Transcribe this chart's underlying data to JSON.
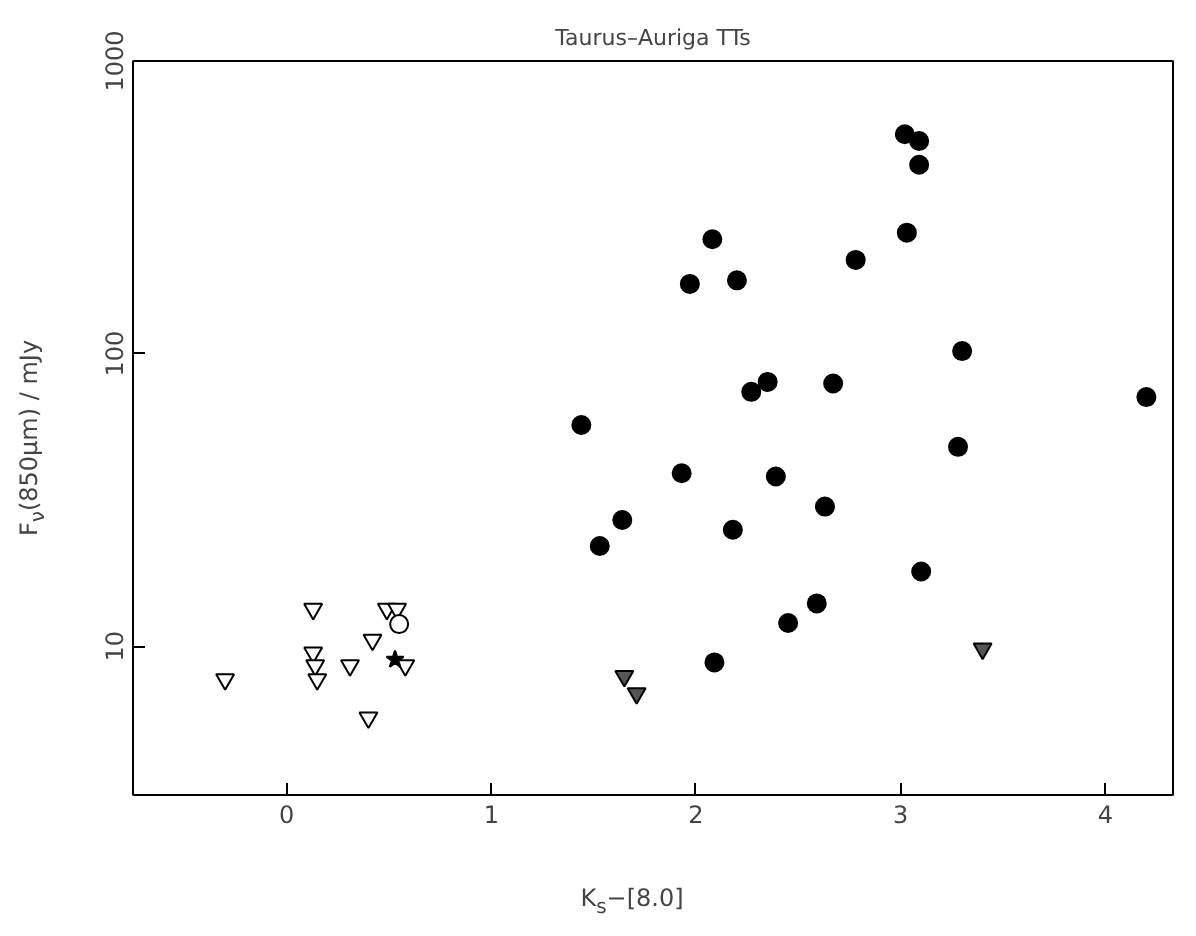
{
  "chart_data": {
    "type": "scatter",
    "title": "Taurus–Auriga TTs",
    "xlabel": "K$_{s}$−[8.0]",
    "ylabel": "F$_{ν}$(850μm) / mJy",
    "log": "y",
    "xlim": [
      -0.75,
      4.33
    ],
    "ylim": [
      3.1,
      1000
    ],
    "xticks": [
      0,
      1,
      2,
      3,
      4
    ],
    "yticks": [
      10,
      100,
      1000
    ],
    "series": [
      {
        "color": "#000000",
        "marker": "circle",
        "x": [
          3.02,
          3.09,
          3.09,
          3.03,
          2.08,
          1.97,
          2.2,
          2.78,
          3.3,
          2.35,
          2.27,
          2.67,
          4.2,
          1.44,
          3.28,
          1.93,
          2.39,
          1.64,
          2.63,
          2.18,
          1.53,
          3.1,
          2.59,
          2.45,
          2.09
        ],
        "values": [
          562,
          533,
          442,
          259,
          246,
          173,
          178,
          209,
          102,
          80,
          74,
          79,
          71,
          57,
          48,
          39,
          38,
          27,
          30,
          25,
          22,
          18,
          14,
          12,
          8.8
        ]
      },
      {
        "color": "#555555",
        "marker": "triangle",
        "x": [
          1.65,
          1.71,
          3.4
        ],
        "values": [
          7.9,
          6.9,
          9.8
        ]
      },
      {
        "color": "#ffffff",
        "marker": "triangle",
        "x": [
          -0.3,
          0.13,
          0.13,
          0.14,
          0.15,
          0.31,
          0.42,
          0.4,
          0.49,
          0.54,
          0.58
        ],
        "values": [
          7.7,
          13.4,
          9.5,
          8.6,
          7.7,
          8.6,
          10.5,
          5.7,
          13.4,
          13.4,
          8.6
        ]
      },
      {
        "color": "#ffffff",
        "marker": "circle",
        "x": [
          0.55
        ],
        "values": [
          11.9
        ]
      },
      {
        "color": "#000000",
        "marker": "star",
        "x": [
          0.53
        ],
        "values": [
          9.0
        ]
      }
    ]
  }
}
